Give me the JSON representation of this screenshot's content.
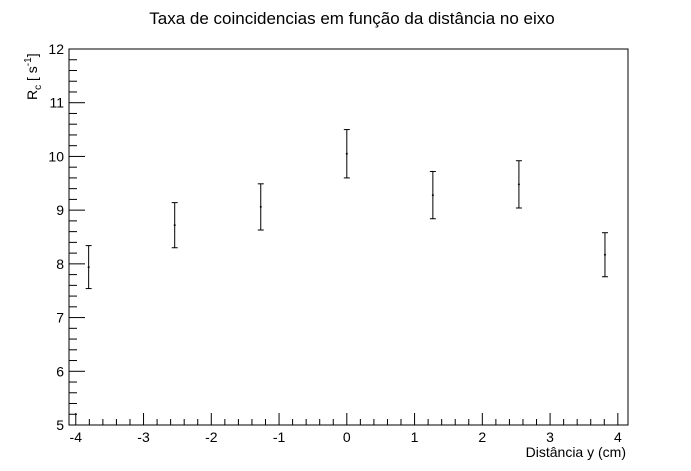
{
  "chart_data": {
    "type": "scatter",
    "title": "Taxa de coincidencias em função da distância no eixo",
    "xlabel": "Distância y (cm)",
    "ylabel": {
      "base": "R",
      "sub": "c",
      "unit_prefix": " [ s",
      "sup": "-1",
      "unit_suffix": "]"
    },
    "xlim": [
      -4.1,
      4.15
    ],
    "ylim": [
      5,
      12
    ],
    "x_ticks": [
      -4,
      -3,
      -2,
      -1,
      0,
      1,
      2,
      3,
      4
    ],
    "y_ticks": [
      5,
      6,
      7,
      8,
      9,
      10,
      11,
      12
    ],
    "x_minor_step": 0.2,
    "y_minor_step": 0.2,
    "grid": false,
    "legend": "none",
    "points": [
      {
        "x": -3.81,
        "y": 7.94,
        "err": 0.4
      },
      {
        "x": -2.54,
        "y": 8.72,
        "err": 0.42
      },
      {
        "x": -1.27,
        "y": 9.06,
        "err": 0.43
      },
      {
        "x": 0.0,
        "y": 10.05,
        "err": 0.45
      },
      {
        "x": 1.27,
        "y": 9.28,
        "err": 0.44
      },
      {
        "x": 2.54,
        "y": 9.48,
        "err": 0.44
      },
      {
        "x": 3.81,
        "y": 8.17,
        "err": 0.41
      }
    ]
  }
}
